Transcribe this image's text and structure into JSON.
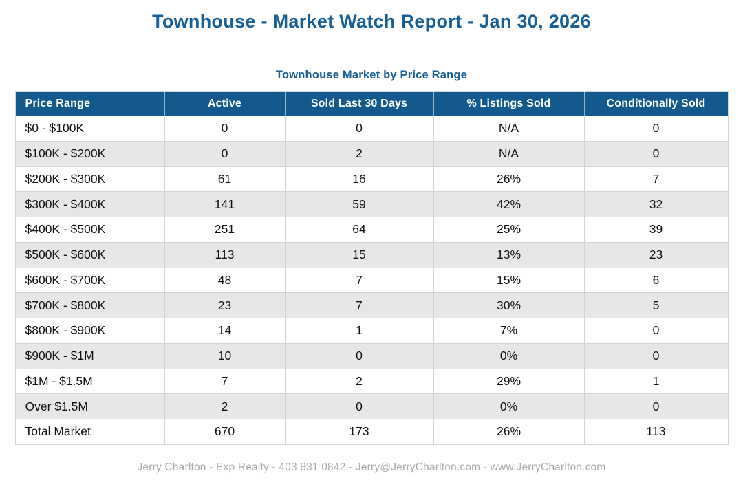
{
  "page": {
    "title": "Townhouse - Market Watch Report - Jan 30, 2026",
    "footer": "Jerry Charlton - Exp Realty - 403 831 0842 - Jerry@JerryCharlton.com - www.JerryCharlton.com"
  },
  "colors": {
    "accent_blue": "#175F99",
    "table_header_bg": "#14598E",
    "row_alt_gray": "#E7E7E7",
    "border_gray": "#D3D3D3",
    "footer_text": "#A9A9A9"
  },
  "chart_data": {
    "type": "table",
    "title": "Townhouse Market by Price Range",
    "columns": [
      "Price Range",
      "Active",
      "Sold Last 30 Days",
      "% Listings Sold",
      "Conditionally Sold"
    ],
    "rows": [
      [
        "$0 - $100K",
        "0",
        "0",
        "N/A",
        "0"
      ],
      [
        "$100K - $200K",
        "0",
        "2",
        "N/A",
        "0"
      ],
      [
        "$200K - $300K",
        "61",
        "16",
        "26%",
        "7"
      ],
      [
        "$300K - $400K",
        "141",
        "59",
        "42%",
        "32"
      ],
      [
        "$400K - $500K",
        "251",
        "64",
        "25%",
        "39"
      ],
      [
        "$500K - $600K",
        "113",
        "15",
        "13%",
        "23"
      ],
      [
        "$600K - $700K",
        "48",
        "7",
        "15%",
        "6"
      ],
      [
        "$700K - $800K",
        "23",
        "7",
        "30%",
        "5"
      ],
      [
        "$800K - $900K",
        "14",
        "1",
        "7%",
        "0"
      ],
      [
        "$900K - $1M",
        "10",
        "0",
        "0%",
        "0"
      ],
      [
        "$1M - $1.5M",
        "7",
        "2",
        "29%",
        "1"
      ],
      [
        "Over $1.5M",
        "2",
        "0",
        "0%",
        "0"
      ],
      [
        "Total Market",
        "670",
        "173",
        "26%",
        "113"
      ]
    ],
    "layout_hints": {
      "first_column_align": "left",
      "other_columns_align": "center",
      "zebra_striping": true,
      "striped_row_indices": [
        1,
        3,
        5,
        7,
        9,
        11
      ]
    }
  }
}
